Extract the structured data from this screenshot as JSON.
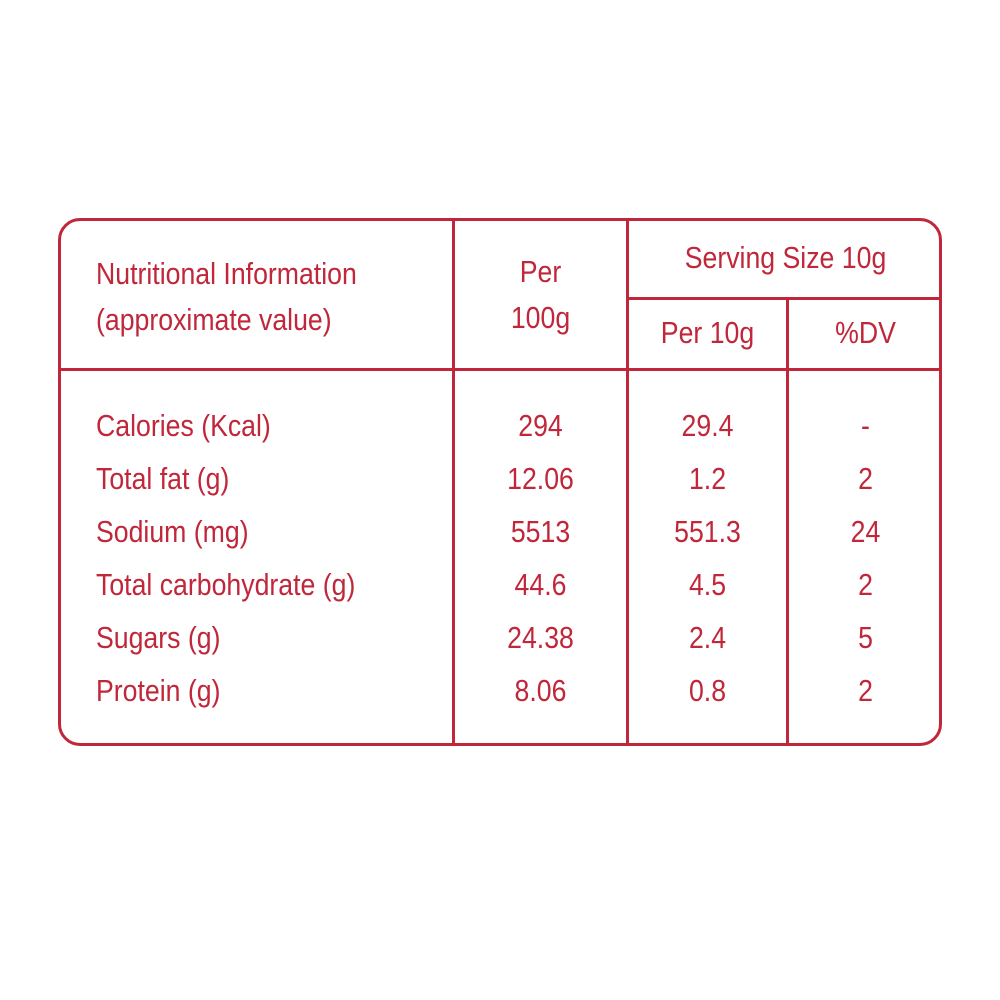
{
  "header": {
    "nutrition_label_line1": "Nutritional Information",
    "nutrition_label_line2": "(approximate value)",
    "per100_line1": "Per",
    "per100_line2": "100g",
    "serving_size": "Serving Size 10g",
    "per10g": "Per 10g",
    "dv": "%DV"
  },
  "rows": [
    {
      "name": "Calories (Kcal)",
      "per100": "294",
      "per10": "29.4",
      "dv": "-"
    },
    {
      "name": "Total fat (g)",
      "per100": "12.06",
      "per10": "1.2",
      "dv": "2"
    },
    {
      "name": "Sodium (mg)",
      "per100": "5513",
      "per10": "551.3",
      "dv": "24"
    },
    {
      "name": "Total carbohydrate (g)",
      "per100": "44.6",
      "per10": "4.5",
      "dv": "2"
    },
    {
      "name": "Sugars (g)",
      "per100": "24.38",
      "per10": "2.4",
      "dv": "5"
    },
    {
      "name": "Protein (g)",
      "per100": "8.06",
      "per10": "0.8",
      "dv": "2"
    }
  ],
  "colors": {
    "accent": "#c0273a",
    "background": "#ffffff"
  }
}
